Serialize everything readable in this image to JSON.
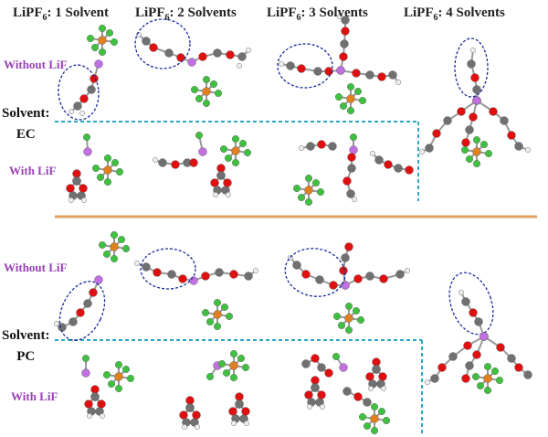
{
  "headers": [
    {
      "prefix": "LiPF",
      "sub": "6",
      "suffix": ": 1 Solvent"
    },
    {
      "prefix": "LiPF",
      "sub": "6",
      "suffix": ": 2 Solvents"
    },
    {
      "prefix": "LiPF",
      "sub": "6",
      "suffix": ": 3 Solvents"
    },
    {
      "prefix": "LiPF",
      "sub": "6",
      "suffix": ": 4 Solvents"
    }
  ],
  "top": {
    "without": "Without LiF",
    "with": "With LiF",
    "solvent_line1": "Solvent:",
    "solvent_line2": "EC"
  },
  "bottom": {
    "without": "Without LiF",
    "with": "With LiF",
    "solvent_line1": "Solvent:",
    "solvent_line2": "PC"
  },
  "colors": {
    "label_purple": "#9a40b8",
    "dashed_divider": "#2aa6c8",
    "section_divider": "#e0a060",
    "highlight_ellipse": "#1a2a9a",
    "carbon": "#707070",
    "oxygen": "#e01010",
    "hydrogen": "#eeeeee",
    "lithium": "#c070e0",
    "fluorine": "#40c040",
    "phosphorus": "#e08020"
  }
}
